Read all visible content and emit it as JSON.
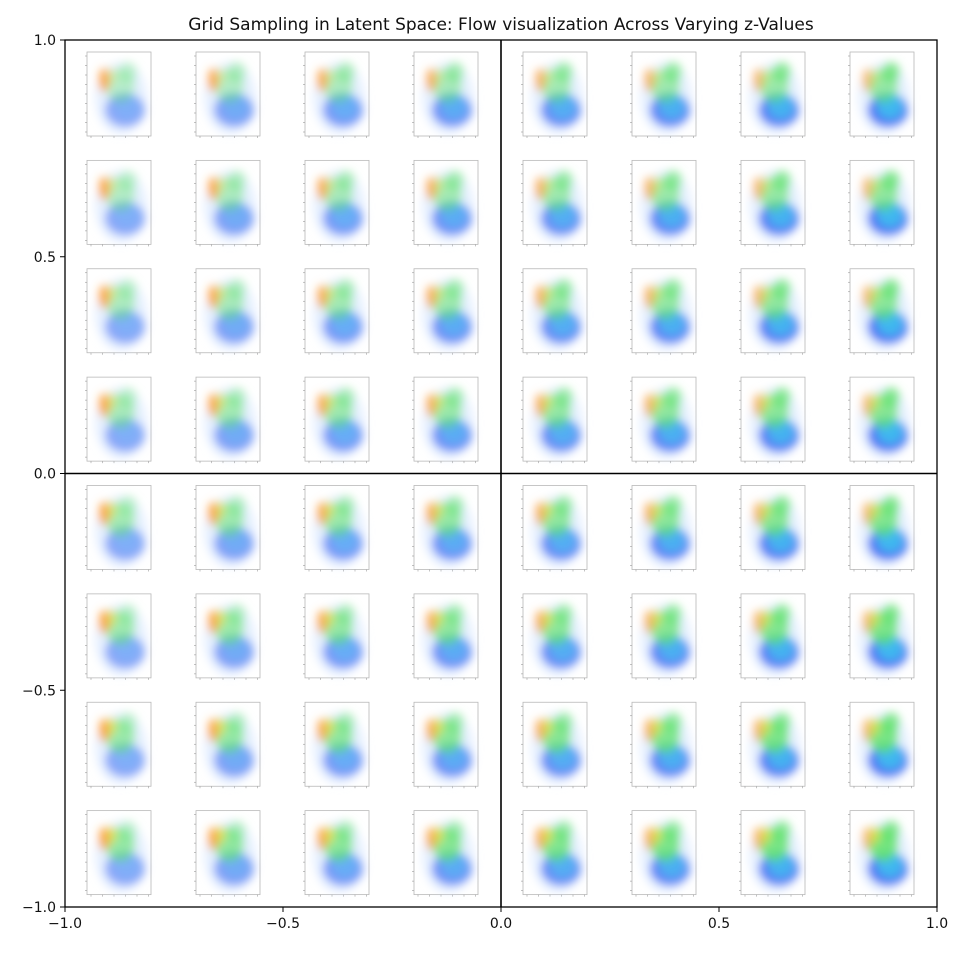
{
  "chart_data": {
    "type": "heatmap",
    "title": "Grid Sampling in Latent Space: Flow visualization Across Varying z-Values",
    "xlabel": "",
    "ylabel": "",
    "xlim": [
      -1.0,
      1.0
    ],
    "ylim": [
      -1.0,
      1.0
    ],
    "x_ticks": [
      -1.0,
      -0.5,
      0.0,
      0.5,
      1.0
    ],
    "x_tick_labels": [
      "−1.0",
      "−0.5",
      "0.0",
      "0.5",
      "1.0"
    ],
    "y_ticks": [
      -1.0,
      -0.5,
      0.0,
      0.5,
      1.0
    ],
    "y_tick_labels": [
      "−1.0",
      "−0.5",
      "0.0",
      "0.5",
      "1.0"
    ],
    "grid": false,
    "reference_lines": {
      "x": 0.0,
      "y": 0.0
    },
    "grid_samples": {
      "columns": 8,
      "rows": 8
    },
    "colors": {
      "orange": "#ff9a2e",
      "yellow": "#f2e23a",
      "green": "#5fe36a",
      "cyan": "#38d8f0",
      "blue": "#3f6cf2",
      "axis": "#000000",
      "thumb_frame": "#b8b8b8"
    }
  }
}
